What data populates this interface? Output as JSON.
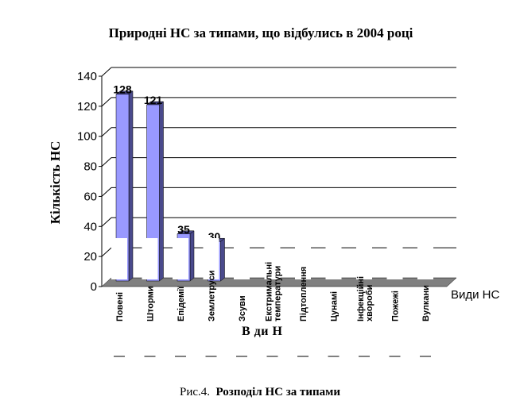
{
  "chart_data": {
    "type": "bar",
    "title": "Природні НС за типами, що відбулись в 2004 році",
    "ylabel": "Кількість НС",
    "xlabel": "Види НС",
    "xlabel_bottom": "В    ди Н",
    "ylim": [
      0,
      140
    ],
    "yticks": [
      "0",
      "20",
      "40",
      "60",
      "80",
      "100",
      "120",
      "140"
    ],
    "grid": true,
    "categories": [
      "Повені",
      "Шторми",
      "Епідемії",
      "Землетруси",
      "Зсуви",
      "Екстримальні температури",
      "Підтоплення",
      "Цунамі",
      "Інфекційні хвороби",
      "Пожежі",
      "Вулкани"
    ],
    "category_lines": [
      [
        "Повені"
      ],
      [
        "Шторми"
      ],
      [
        "Епідемії"
      ],
      [
        "Землетруси"
      ],
      [
        "Зсуви"
      ],
      [
        "Екстримальні",
        "температури"
      ],
      [
        "Підтоплення"
      ],
      [
        "Цунамі"
      ],
      [
        "Інфекційні",
        "хвороби"
      ],
      [
        "Пожежі"
      ],
      [
        "Вулкани"
      ]
    ],
    "values": [
      128,
      121,
      35,
      30,
      null,
      null,
      null,
      null,
      null,
      null,
      null
    ],
    "data_labels": [
      "128",
      "121",
      "35",
      "30",
      "",
      "",
      "",
      "",
      "",
      "",
      ""
    ],
    "colors": {
      "bar_front": "#9999ff",
      "bar_side": "#4a4a8c",
      "floor": "#808080",
      "grid": "#000000"
    }
  },
  "caption": {
    "prefix": "Рис.4.",
    "text": "Розподіл НС за типами"
  }
}
